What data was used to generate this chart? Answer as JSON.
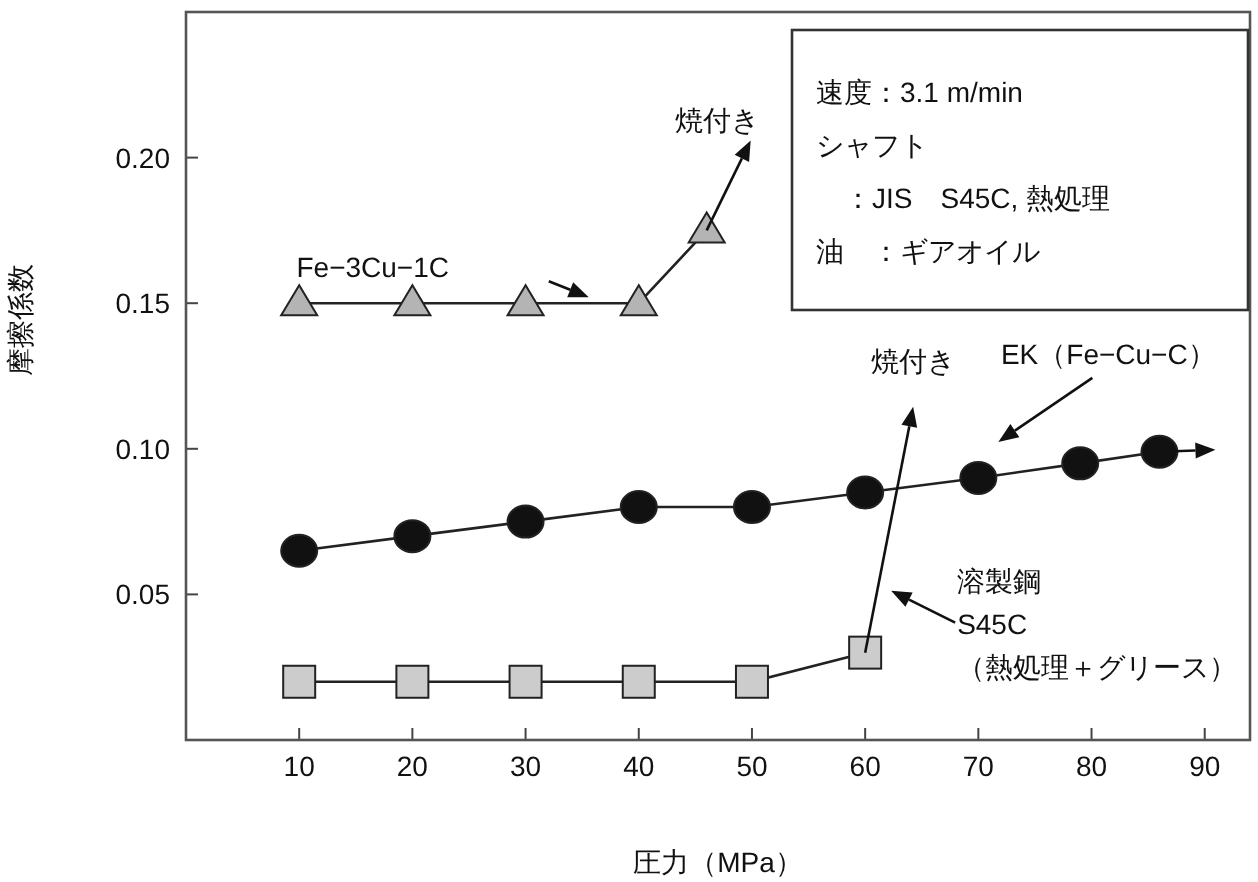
{
  "chart_data": {
    "type": "line",
    "xlabel": "圧力（MPa）",
    "ylabel": "摩擦係数",
    "xlim": [
      0,
      94
    ],
    "xticks": [
      10,
      20,
      30,
      40,
      50,
      60,
      70,
      80,
      90
    ],
    "ylim": [
      0,
      0.25
    ],
    "yticks": [
      0.05,
      {
        "value": 0.1,
        "label": "0.10"
      },
      0.15,
      {
        "value": 0.2,
        "label": "0.20"
      }
    ],
    "grid": false,
    "legend": false,
    "series": [
      {
        "color": "#b4b4b4",
        "marker": "triangle",
        "x": [
          10,
          20,
          30,
          40,
          46
        ],
        "values": [
          0.15,
          0.15,
          0.15,
          0.15,
          0.175
        ]
      },
      {
        "color": "#111111",
        "marker": "circle",
        "x": [
          10,
          20,
          30,
          40,
          50,
          60,
          70,
          79,
          86
        ],
        "values": [
          0.065,
          0.07,
          0.075,
          0.08,
          0.08,
          0.085,
          0.09,
          0.095,
          0.099
        ]
      },
      {
        "color": "#cccccc",
        "marker": "square",
        "x": [
          10,
          20,
          30,
          40,
          50,
          60
        ],
        "values": [
          0.02,
          0.02,
          0.02,
          0.02,
          0.02,
          0.03
        ]
      }
    ],
    "annotations": [
      "Fe−3Cu−1C",
      {
        "text": "焼付き",
        "x": 46,
        "y": 0.175
      },
      "EK（Fe−Cu−C）",
      "焼付き",
      "溶製鋼\nS45C\n（熱処理＋グリース）",
      "速度：3.1 m/min",
      "シャフト",
      "　：JIS　S45C, 熱処理",
      "油　：ギアオイル"
    ]
  }
}
